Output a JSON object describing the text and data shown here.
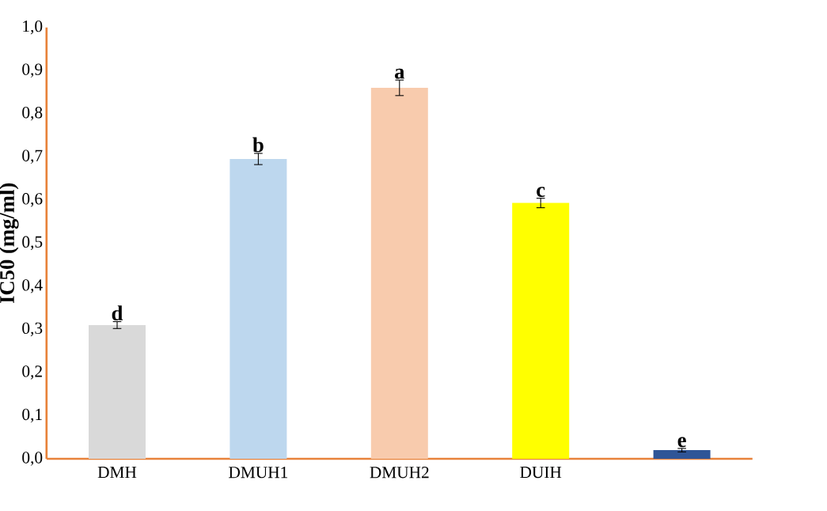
{
  "chart_data": {
    "type": "bar",
    "ylabel": "IC50 (mg/ml)",
    "categories": [
      "DMH",
      "DMUH1",
      "DMUH2",
      "DUIH",
      null
    ],
    "values": [
      0.31,
      0.695,
      0.86,
      0.593,
      0.02
    ],
    "errors": [
      0.008,
      0.013,
      0.018,
      0.011,
      0.004
    ],
    "colors": [
      "#d9d9d9",
      "#bdd7ee",
      "#f8cbad",
      "#ffff00",
      "#2f5597"
    ],
    "ylim": [
      0,
      1
    ],
    "yticks": [
      {
        "value": 0,
        "label": "0,0"
      },
      {
        "value": 0.1,
        "label": "0,1"
      },
      {
        "value": 0.2,
        "label": "0,2"
      },
      {
        "value": 0.3,
        "label": "0,3"
      },
      {
        "value": 0.4,
        "label": "0,4"
      },
      {
        "value": 0.5,
        "label": "0,5"
      },
      {
        "value": 0.6,
        "label": "0,6"
      },
      {
        "value": 0.7,
        "label": "0,7"
      },
      {
        "value": 0.8,
        "label": "0,8"
      },
      {
        "value": 0.9,
        "label": "0,9"
      },
      {
        "value": 1.0,
        "label": "1,0"
      }
    ],
    "annotations": [
      {
        "text": "d",
        "y": 0.318
      },
      {
        "text": "b",
        "y": 0.708
      },
      {
        "text": "a",
        "y": 0.878
      },
      {
        "text": "c",
        "y": 0.604
      },
      {
        "text": "e",
        "y": 0.024
      }
    ],
    "grid": false
  }
}
